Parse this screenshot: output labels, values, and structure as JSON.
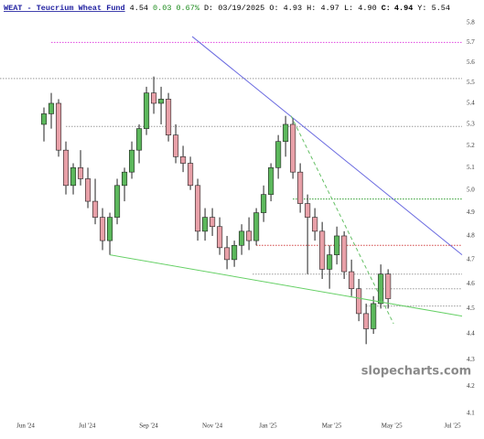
{
  "chart_data": {
    "type": "candlestick",
    "header": {
      "title": "WEAT - Teucrium Wheat Fund",
      "last": "4.54",
      "change": "0.03",
      "change_pct": "0.67%",
      "info": "D: 03/19/2025 O: 4.93 H: 4.97 L: 4.90",
      "close_key": "C:",
      "close": "4.94",
      "extra": "Y: 5.54"
    },
    "watermark": "slopecharts.com",
    "log_scale": true,
    "ylim": [
      4.1,
      5.8
    ],
    "yticks": [
      4.1,
      4.2,
      4.3,
      4.4,
      4.5,
      4.6,
      4.7,
      4.8,
      4.9,
      {
        "value": 5,
        "label": "5.0"
      },
      5.1,
      5.2,
      5.3,
      5.4,
      5.5,
      5.6,
      5.7,
      5.8
    ],
    "xlim": [
      -6,
      57.1
    ],
    "xticks": [
      {
        "value": -2.5,
        "label": "Jun '24"
      },
      {
        "value": 5.9,
        "label": "Jul '24"
      },
      {
        "value": 14.3,
        "label": "Sep '24"
      },
      {
        "value": 23,
        "label": "Nov '24"
      },
      {
        "value": 30.6,
        "label": "Jan '25"
      },
      {
        "value": 39.3,
        "label": "Mar '25"
      },
      {
        "value": 47.5,
        "label": "May '25"
      },
      {
        "value": 55.8,
        "label": "Jul '25"
      }
    ],
    "up_color": "#5cb85c",
    "down_color": "#e8a0a8",
    "x": [
      0,
      1,
      2,
      3,
      4,
      5,
      6,
      7,
      8,
      9,
      10,
      11,
      12,
      13,
      14,
      15,
      16,
      17,
      18,
      19,
      20,
      21,
      22,
      23,
      24,
      25,
      26,
      27,
      28,
      29,
      30,
      31,
      32,
      33,
      34,
      35,
      36,
      37,
      38,
      39,
      40,
      41,
      42,
      43,
      44,
      45,
      46,
      47
    ],
    "open": [
      5.3,
      5.35,
      5.4,
      5.18,
      5.02,
      5.1,
      5.05,
      4.95,
      4.88,
      4.78,
      4.88,
      5.02,
      5.08,
      5.18,
      5.28,
      5.45,
      5.4,
      5.42,
      5.25,
      5.15,
      5.12,
      5.02,
      4.82,
      4.88,
      4.84,
      4.75,
      4.7,
      4.76,
      4.82,
      4.78,
      4.9,
      4.98,
      5.1,
      5.22,
      5.3,
      5.08,
      4.94,
      4.88,
      4.82,
      4.66,
      4.72,
      4.8,
      4.65,
      4.58,
      4.48,
      4.42,
      4.52,
      4.64
    ],
    "high": [
      5.38,
      5.45,
      5.42,
      5.22,
      5.12,
      5.18,
      5.1,
      5.05,
      4.92,
      4.9,
      5.05,
      5.1,
      5.22,
      5.3,
      5.48,
      5.53,
      5.48,
      5.45,
      5.3,
      5.2,
      5.15,
      5.05,
      4.92,
      4.92,
      4.88,
      4.8,
      4.78,
      4.85,
      4.88,
      4.92,
      5.02,
      5.12,
      5.25,
      5.34,
      5.33,
      5.12,
      4.98,
      4.92,
      4.86,
      4.76,
      4.84,
      4.82,
      4.7,
      4.62,
      4.52,
      4.55,
      4.68,
      4.66
    ],
    "low": [
      5.22,
      5.28,
      5.15,
      4.98,
      4.98,
      5.02,
      4.92,
      4.85,
      4.74,
      4.72,
      4.85,
      4.95,
      5.05,
      5.12,
      5.25,
      5.35,
      5.3,
      5.22,
      5.12,
      5.08,
      5.0,
      4.78,
      4.78,
      4.8,
      4.72,
      4.66,
      4.67,
      4.72,
      4.74,
      4.76,
      4.86,
      4.95,
      5.05,
      5.15,
      5.05,
      4.9,
      4.64,
      4.78,
      4.62,
      4.58,
      4.68,
      4.62,
      4.55,
      4.45,
      4.36,
      4.4,
      4.5,
      4.5
    ],
    "close": [
      5.35,
      5.4,
      5.18,
      5.02,
      5.1,
      5.05,
      4.95,
      4.88,
      4.78,
      4.88,
      5.02,
      5.08,
      5.18,
      5.28,
      5.45,
      5.4,
      5.42,
      5.25,
      5.15,
      5.12,
      5.02,
      4.82,
      4.88,
      4.84,
      4.75,
      4.7,
      4.76,
      4.82,
      4.78,
      4.9,
      4.98,
      5.1,
      5.22,
      5.3,
      5.08,
      4.94,
      4.88,
      4.82,
      4.66,
      4.72,
      4.8,
      4.65,
      4.58,
      4.48,
      4.42,
      4.52,
      4.64,
      4.54
    ],
    "levels": [
      {
        "value": 5.7,
        "from": 1,
        "color": "#e040e0"
      },
      {
        "value": 5.52,
        "from": -6,
        "color": "#999999"
      },
      {
        "value": 5.29,
        "from": 3,
        "color": "#999999"
      },
      {
        "value": 4.96,
        "from": 34,
        "color": "#2a9a2a"
      },
      {
        "value": 4.76,
        "from": 29,
        "color": "#d04040"
      },
      {
        "value": 4.64,
        "from": 28.5,
        "color": "#999999"
      },
      {
        "value": 4.58,
        "from": 44,
        "color": "#999999"
      },
      {
        "value": 4.51,
        "from": 44,
        "color": "#999999"
      }
    ],
    "trendlines": [
      {
        "x": [
          20.25,
          57.1
        ],
        "y": [
          5.73,
          4.72
        ],
        "color": "#6a6ae0",
        "dashed": false
      },
      {
        "x": [
          9,
          57.1
        ],
        "y": [
          4.72,
          4.47
        ],
        "color": "#66d066",
        "dashed": false
      },
      {
        "x": [
          33.75,
          47.75
        ],
        "y": [
          5.34,
          4.44
        ],
        "color": "#66c066",
        "dashed": true
      }
    ]
  }
}
